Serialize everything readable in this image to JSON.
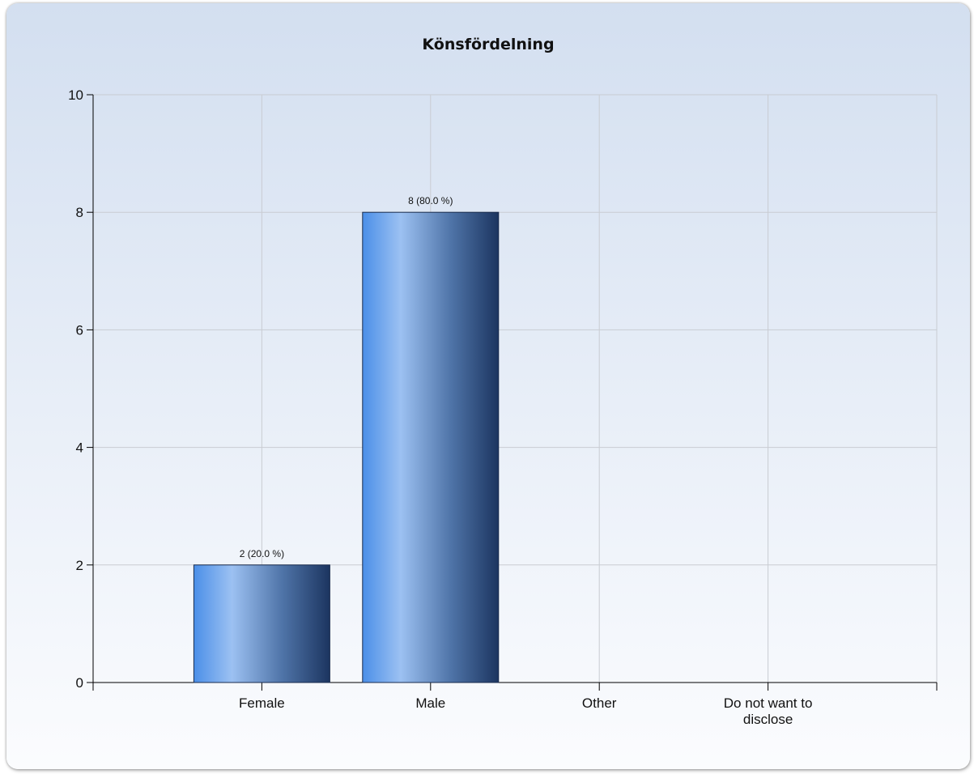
{
  "chart_data": {
    "type": "bar",
    "title": "Könsfördelning",
    "xlabel": "",
    "ylabel": "",
    "categories": [
      [
        "Female"
      ],
      [
        "Male"
      ],
      [
        "Other"
      ],
      [
        "Do not want to",
        "disclose"
      ]
    ],
    "values": [
      2,
      8,
      0,
      0
    ],
    "data_labels": [
      "2 (20.0 %)",
      "8 (80.0 %)",
      "",
      ""
    ],
    "ylim": [
      0,
      10
    ],
    "yticks": [
      0,
      2,
      4,
      6,
      8,
      10
    ],
    "grid": true,
    "legend": "none",
    "colors": {
      "bar_light": "#9cc1f2",
      "bar_left": "#4b8fe8",
      "bar_dark": "#1c3560",
      "grid": "#c9ccd2",
      "axis": "#000000"
    }
  }
}
